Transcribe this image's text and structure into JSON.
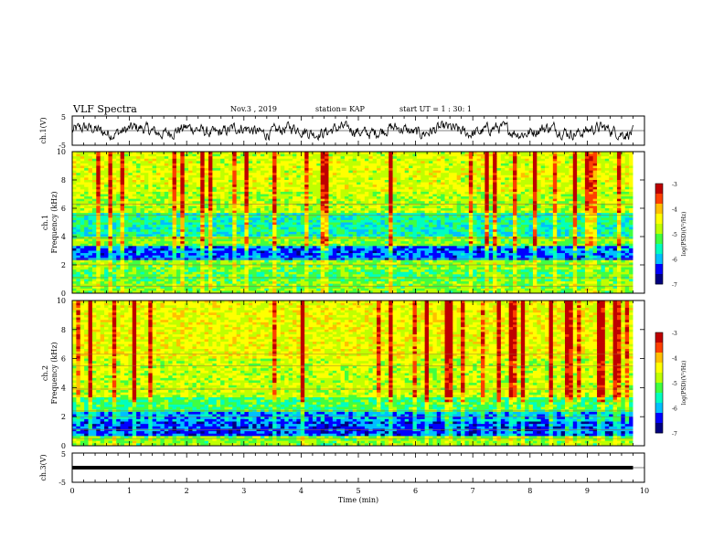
{
  "header": {
    "title": "VLF Spectra",
    "date": "Nov.3 , 2019",
    "station": "station= KAP",
    "start_ut": "start UT = 1 : 30: 1"
  },
  "colors": {
    "colormap": [
      "#00007f",
      "#0000ff",
      "#00bfff",
      "#00ffbf",
      "#40ff40",
      "#bfff00",
      "#ffff00",
      "#ffbf00",
      "#ff4000",
      "#bf0000",
      "#ffffff"
    ],
    "waveform": "#000000",
    "axis": "#000000"
  },
  "chart_data": [
    {
      "type": "line",
      "name": "ch1-waveform",
      "ylabel": "ch.1(V)",
      "ylim": [
        -5,
        5
      ],
      "yticks": [
        "5",
        "-5"
      ],
      "xlim": [
        0,
        9.8
      ],
      "description_values": "oscillating signal roughly between -3 V and 3 V"
    },
    {
      "type": "heatmap",
      "name": "ch1-spectrogram",
      "ylabel": "ch.1\nFrequency (kHz)",
      "ylim": [
        0,
        10
      ],
      "yticks": [
        "0",
        "2",
        "4",
        "6",
        "8",
        "10"
      ],
      "xlim": [
        0,
        9.8
      ],
      "colorbar": {
        "label": "log(PSD)(V²/Hz)",
        "range": [
          -7,
          -3
        ],
        "ticks": [
          "-3",
          "-4",
          "-5",
          "-6",
          "-7"
        ]
      },
      "bands": [
        {
          "from": 0,
          "to": 0.8,
          "level": -5.0
        },
        {
          "from": 0.8,
          "to": 1.6,
          "level": -5.2
        },
        {
          "from": 1.6,
          "to": 2.4,
          "level": -5.0
        },
        {
          "from": 2.4,
          "to": 3.4,
          "level": -6.2
        },
        {
          "from": 3.4,
          "to": 4.0,
          "level": -5.0
        },
        {
          "from": 4.0,
          "to": 4.8,
          "level": -5.6
        },
        {
          "from": 4.8,
          "to": 5.6,
          "level": -5.5
        },
        {
          "from": 5.6,
          "to": 7.2,
          "level": -4.8
        },
        {
          "from": 7.2,
          "to": 10,
          "level": -4.6
        }
      ]
    },
    {
      "type": "heatmap",
      "name": "ch2-spectrogram",
      "ylabel": "ch.2\nFrequency (kHz)",
      "ylim": [
        0,
        10
      ],
      "yticks": [
        "0",
        "2",
        "4",
        "6",
        "8",
        "10"
      ],
      "xlim": [
        0,
        9.8
      ],
      "colorbar": {
        "label": "log(PSD)(V²/Hz)",
        "range": [
          -7,
          -3
        ],
        "ticks": [
          "-3",
          "-4",
          "-5",
          "-6",
          "-7"
        ]
      },
      "bands": [
        {
          "from": 0,
          "to": 0.6,
          "level": -5.0
        },
        {
          "from": 0.6,
          "to": 1.6,
          "level": -6.3
        },
        {
          "from": 1.6,
          "to": 2.4,
          "level": -6.0
        },
        {
          "from": 2.4,
          "to": 3.4,
          "level": -5.3
        },
        {
          "from": 3.4,
          "to": 6.0,
          "level": -4.7
        },
        {
          "from": 6.0,
          "to": 10,
          "level": -4.5
        }
      ]
    },
    {
      "type": "line",
      "name": "ch3-waveform",
      "ylabel": "ch.3(V)",
      "ylim": [
        -5,
        5
      ],
      "yticks": [
        "5",
        "-5"
      ],
      "xlim": [
        0,
        9.8
      ],
      "constant_value": 0,
      "xlabel": "Time (min)",
      "xticks": [
        "0",
        "1",
        "2",
        "3",
        "4",
        "5",
        "6",
        "7",
        "8",
        "9",
        "10"
      ],
      "xrange": [
        0,
        10
      ]
    }
  ]
}
